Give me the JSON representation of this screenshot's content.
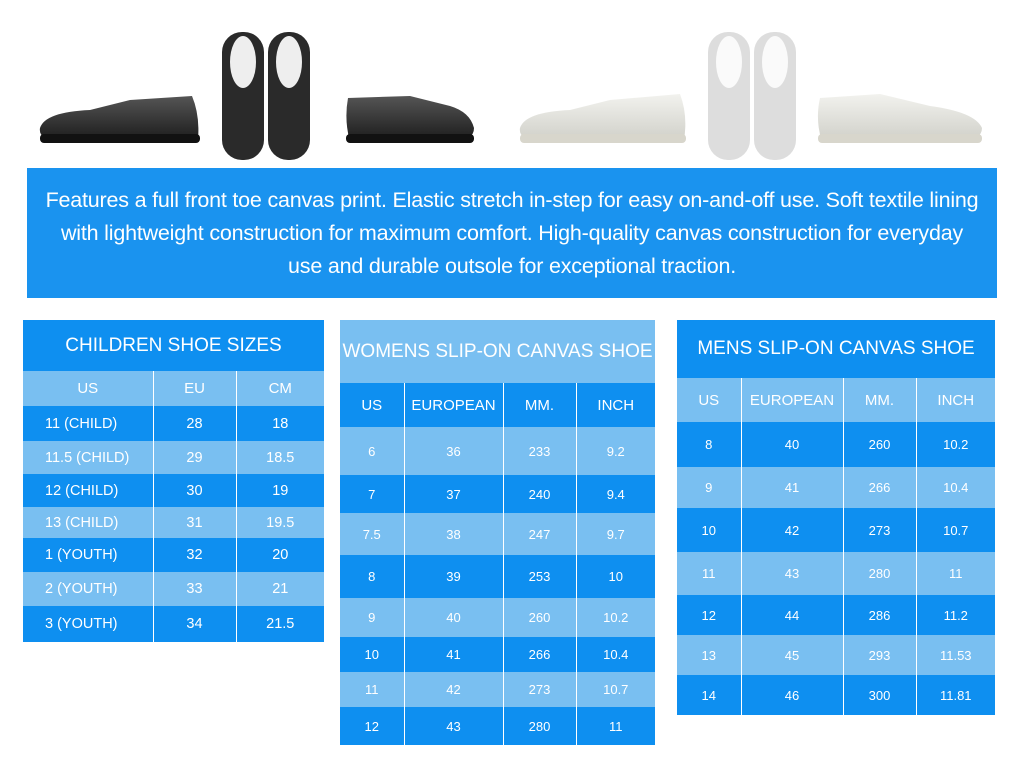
{
  "banner": {
    "text": "Features a full front toe canvas print. Elastic stretch in-step for easy on-and-off use. Soft textile lining with lightweight construction for maximum comfort. High-quality canvas construction for everyday use and durable outsole for exceptional traction."
  },
  "shoes": [
    "black-slip-on-side",
    "black-slip-on-top",
    "black-slip-on-side-right",
    "white-slip-on-side",
    "white-slip-on-top",
    "white-slip-on-side-right"
  ],
  "colors": {
    "dark_blue": "#0e8ff0",
    "light_blue": "#79bff1",
    "banner": "#1a93ef"
  },
  "children": {
    "title": "CHILDREN SHOE SIZES",
    "headers": [
      "US",
      "EU",
      "CM"
    ],
    "rows": [
      [
        "11 (CHILD)",
        "28",
        "18"
      ],
      [
        "11.5 (CHILD)",
        "29",
        "18.5"
      ],
      [
        "12 (CHILD)",
        "30",
        "19"
      ],
      [
        "13 (CHILD)",
        "31",
        "19.5"
      ],
      [
        "1 (YOUTH)",
        "32",
        "20"
      ],
      [
        "2 (YOUTH)",
        "33",
        "21"
      ],
      [
        "3 (YOUTH)",
        "34",
        "21.5"
      ]
    ]
  },
  "womens": {
    "title": "WOMENS  SLIP-ON CANVAS SHOE",
    "headers": [
      "US",
      "EUROPEAN",
      "MM.",
      "INCH"
    ],
    "rows": [
      [
        "6",
        "36",
        "233",
        "9.2"
      ],
      [
        "7",
        "37",
        "240",
        "9.4"
      ],
      [
        "7.5",
        "38",
        "247",
        "9.7"
      ],
      [
        "8",
        "39",
        "253",
        "10"
      ],
      [
        "9",
        "40",
        "260",
        "10.2"
      ],
      [
        "10",
        "41",
        "266",
        "10.4"
      ],
      [
        "11",
        "42",
        "273",
        "10.7"
      ],
      [
        "12",
        "43",
        "280",
        "11"
      ]
    ]
  },
  "mens": {
    "title": "MENS SLIP-ON CANVAS SHOE",
    "headers": [
      "US",
      "EUROPEAN",
      "MM.",
      "INCH"
    ],
    "rows": [
      [
        "8",
        "40",
        "260",
        "10.2"
      ],
      [
        "9",
        "41",
        "266",
        "10.4"
      ],
      [
        "10",
        "42",
        "273",
        "10.7"
      ],
      [
        "11",
        "43",
        "280",
        "11"
      ],
      [
        "12",
        "44",
        "286",
        "11.2"
      ],
      [
        "13",
        "45",
        "293",
        "11.53"
      ],
      [
        "14",
        "46",
        "300",
        "11.81"
      ]
    ]
  }
}
